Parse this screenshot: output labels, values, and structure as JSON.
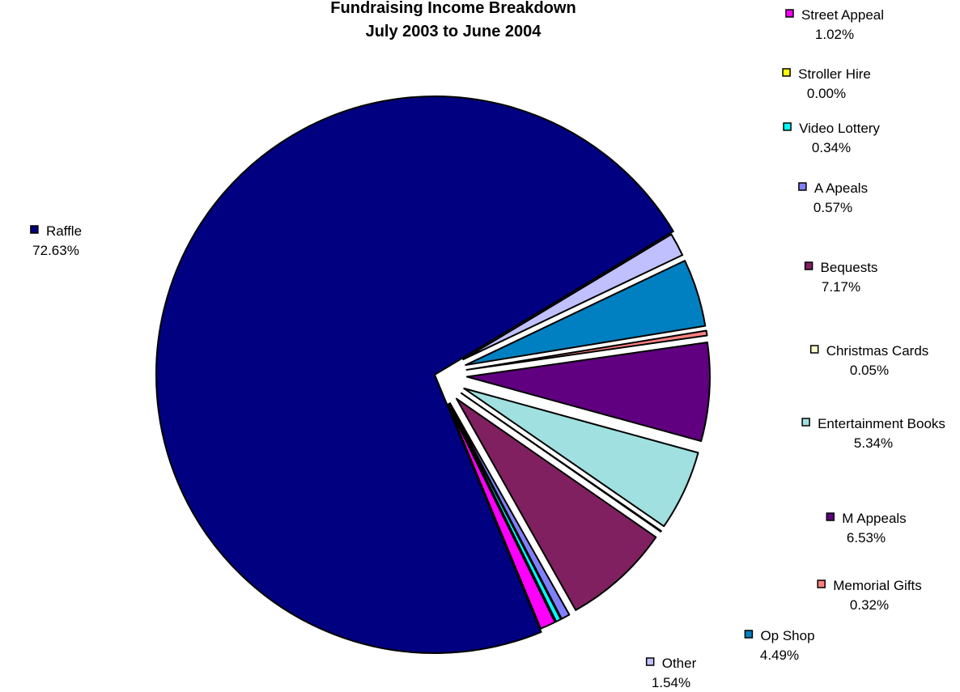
{
  "chart_data": {
    "type": "pie",
    "title": "Fundraising Income Breakdown",
    "subtitle": "July 2003 to June 2004",
    "exploded": true,
    "series": [
      {
        "slices": [
          {
            "label": "Raffle",
            "value": 72.63,
            "display": "72.63%",
            "color": "#000080"
          },
          {
            "label": "Street Appeal",
            "value": 1.02,
            "display": "1.02%",
            "color": "#FF00FF"
          },
          {
            "label": "Stroller Hire",
            "value": 0.0,
            "display": "0.00%",
            "color": "#FFFF00"
          },
          {
            "label": "Video Lottery",
            "value": 0.34,
            "display": "0.34%",
            "color": "#00FFFF"
          },
          {
            "label": "A Apeals",
            "value": 0.57,
            "display": "0.57%",
            "color": "#8080FF"
          },
          {
            "label": "Bequests",
            "value": 7.17,
            "display": "7.17%",
            "color": "#802060"
          },
          {
            "label": "Christmas Cards",
            "value": 0.05,
            "display": "0.05%",
            "color": "#FFFFCC"
          },
          {
            "label": "Entertainment Books",
            "value": 5.34,
            "display": "5.34%",
            "color": "#A0E0E0"
          },
          {
            "label": "M Appeals",
            "value": 6.53,
            "display": "6.53%",
            "color": "#600080"
          },
          {
            "label": "Memorial Gifts",
            "value": 0.32,
            "display": "0.32%",
            "color": "#FF8080"
          },
          {
            "label": "Op Shop",
            "value": 4.49,
            "display": "4.49%",
            "color": "#0080C0"
          },
          {
            "label": "Other",
            "value": 1.54,
            "display": "1.54%",
            "color": "#C0C0FF"
          }
        ]
      }
    ]
  }
}
